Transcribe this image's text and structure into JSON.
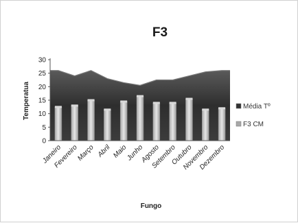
{
  "chart_data": {
    "type": "bar+area",
    "title": "F3",
    "xlabel": "Fungo",
    "ylabel": "Temperatua",
    "ylim": [
      0,
      30
    ],
    "yticks": [
      0,
      5,
      10,
      15,
      20,
      25,
      30
    ],
    "categories": [
      "Janeiro",
      "Fevereiro",
      "Março",
      "Abril",
      "Maio",
      "Junho",
      "Agosto",
      "Setembro",
      "Outubro",
      "Novembro",
      "Dezembro"
    ],
    "series": [
      {
        "name": "Média Tº",
        "type": "area",
        "color": "#3a3a3a",
        "values": [
          26,
          24,
          26,
          23,
          21.5,
          20.5,
          22.5,
          22.5,
          24,
          25.5,
          26
        ]
      },
      {
        "name": "F3 CM",
        "type": "bar",
        "color": "#9a9a9a",
        "values": [
          12.5,
          13,
          15,
          11.5,
          14.5,
          16.5,
          14,
          14,
          15.5,
          11.5,
          12
        ]
      }
    ],
    "legend_position": "right",
    "grid": false
  }
}
